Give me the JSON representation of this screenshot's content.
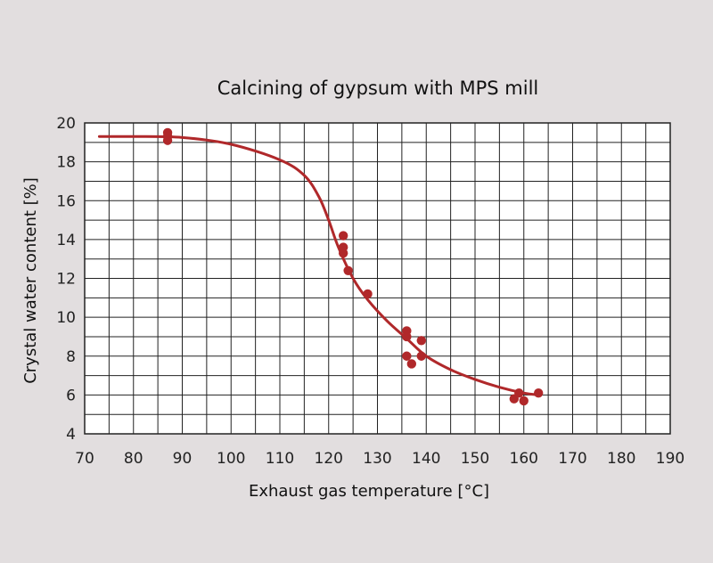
{
  "chart_data": {
    "type": "scatter",
    "title": "Calcining of gypsum with MPS mill",
    "xlabel": "Exhaust gas temperature [°C]",
    "ylabel": "Crystal water content [%]",
    "xlim": [
      70,
      190
    ],
    "ylim": [
      4,
      20
    ],
    "xticks": [
      70,
      80,
      90,
      100,
      110,
      120,
      130,
      140,
      150,
      160,
      170,
      180,
      190
    ],
    "yticks": [
      4,
      6,
      8,
      10,
      12,
      14,
      16,
      18,
      20
    ],
    "x_minor_step": 5,
    "y_minor_step": 1,
    "grid": true,
    "colors": {
      "background": "#e2dedf",
      "plot_background": "#ffffff",
      "grid": "#222222",
      "series": "#b0282a"
    },
    "series": [
      {
        "kind": "points",
        "points": [
          {
            "x": 87,
            "y": 19.5
          },
          {
            "x": 87,
            "y": 19.3
          },
          {
            "x": 87,
            "y": 19.1
          },
          {
            "x": 123,
            "y": 14.2
          },
          {
            "x": 123,
            "y": 13.6
          },
          {
            "x": 123,
            "y": 13.3
          },
          {
            "x": 124,
            "y": 12.4
          },
          {
            "x": 128,
            "y": 11.2
          },
          {
            "x": 136,
            "y": 9.3
          },
          {
            "x": 136,
            "y": 9.0
          },
          {
            "x": 136,
            "y": 8.0
          },
          {
            "x": 137,
            "y": 7.6
          },
          {
            "x": 139,
            "y": 8.8
          },
          {
            "x": 139,
            "y": 8.0
          },
          {
            "x": 158,
            "y": 5.8
          },
          {
            "x": 159,
            "y": 6.1
          },
          {
            "x": 160,
            "y": 5.7
          },
          {
            "x": 163,
            "y": 6.1
          }
        ]
      },
      {
        "kind": "trend-curve",
        "points": [
          {
            "x": 73,
            "y": 19.3
          },
          {
            "x": 80,
            "y": 19.3
          },
          {
            "x": 90,
            "y": 19.25
          },
          {
            "x": 100,
            "y": 18.9
          },
          {
            "x": 110,
            "y": 18.1
          },
          {
            "x": 115,
            "y": 17.3
          },
          {
            "x": 118,
            "y": 16.2
          },
          {
            "x": 120,
            "y": 15.0
          },
          {
            "x": 122,
            "y": 13.6
          },
          {
            "x": 125,
            "y": 12.0
          },
          {
            "x": 128,
            "y": 10.9
          },
          {
            "x": 132,
            "y": 9.8
          },
          {
            "x": 136,
            "y": 8.9
          },
          {
            "x": 140,
            "y": 8.0
          },
          {
            "x": 145,
            "y": 7.3
          },
          {
            "x": 150,
            "y": 6.8
          },
          {
            "x": 155,
            "y": 6.4
          },
          {
            "x": 160,
            "y": 6.1
          },
          {
            "x": 163,
            "y": 6.0
          }
        ]
      }
    ]
  }
}
